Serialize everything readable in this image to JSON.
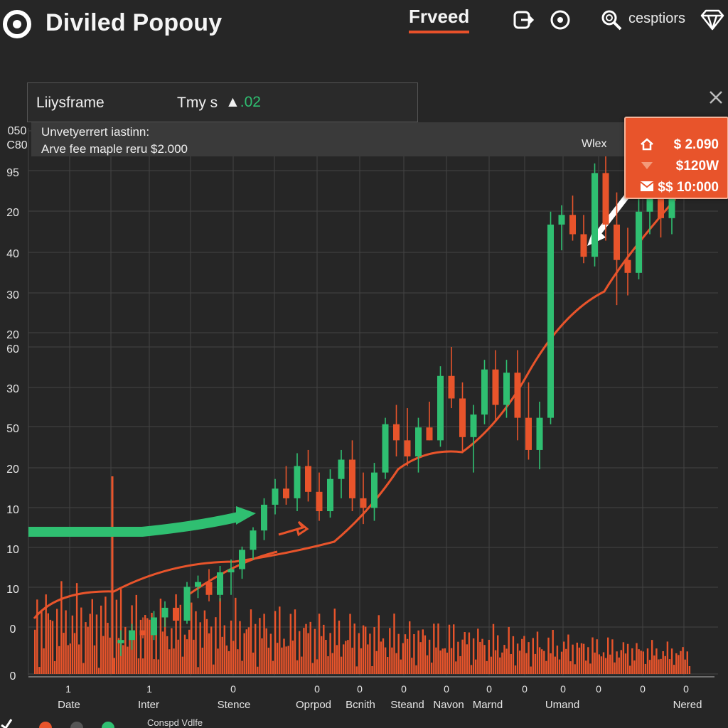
{
  "app": {
    "title": "Diviled Popouy"
  },
  "nav": {
    "active_tab": "Frveed",
    "search_label": "cesptiors"
  },
  "icons": {
    "logo": "logo-ring-icon",
    "export": "export-icon",
    "target": "target-icon",
    "search": "search-icon",
    "diamond": "diamond-icon",
    "close": "close-icon"
  },
  "panel": {
    "title": "Liiysframe",
    "metric_label": "Tmy s",
    "delta_symbol": "▲",
    "delta_value": ".02"
  },
  "info": {
    "line1": "Unvetyerrert iastinn:",
    "line2": "Arve fee maple reru $2.000",
    "right_label": "Wlex"
  },
  "tooltip": {
    "rows": [
      {
        "icon": "home-icon",
        "value": "$ 2.090"
      },
      {
        "icon": "caret-down-icon",
        "value": "$120W"
      },
      {
        "icon": "mail-icon",
        "value": "$$ 10:000"
      }
    ]
  },
  "legend": {
    "label": "Conspd Vdlfe"
  },
  "colors": {
    "background": "#262626",
    "up": "#2fbf71",
    "down": "#e8542b",
    "grid": "#444444",
    "accent": "#e8512a"
  },
  "chart_data": {
    "type": "candlestick",
    "y_tick_labels": [
      "050",
      "C80",
      "95",
      "20",
      "40",
      "30",
      "20",
      "60",
      "30",
      "50",
      "20",
      "10",
      "10",
      "10",
      "0",
      "0"
    ],
    "x_tick_numbers": [
      "1",
      "1",
      "0",
      "0",
      "0",
      "0",
      "0",
      "0",
      "0",
      "0",
      "0",
      "0",
      "0"
    ],
    "x_tick_labels": [
      "Date",
      "Inter",
      "Stence",
      "Oprpod",
      "Bcnith",
      "Steand",
      "Navon",
      "Marnd",
      "Umand",
      "Nered"
    ],
    "ohlc": [
      [
        210,
        218,
        202,
        212,
        10
      ],
      [
        212,
        222,
        206,
        218,
        11
      ],
      [
        218,
        226,
        213,
        215,
        12
      ],
      [
        215,
        230,
        212,
        226,
        14
      ],
      [
        226,
        236,
        220,
        232,
        12
      ],
      [
        232,
        240,
        220,
        224,
        15
      ],
      [
        224,
        248,
        222,
        245,
        16
      ],
      [
        245,
        252,
        238,
        248,
        18
      ],
      [
        248,
        256,
        236,
        240,
        20
      ],
      [
        240,
        258,
        236,
        254,
        18
      ],
      [
        254,
        262,
        240,
        256,
        16
      ],
      [
        256,
        270,
        250,
        268,
        14
      ],
      [
        268,
        282,
        262,
        280,
        16
      ],
      [
        280,
        300,
        274,
        296,
        18
      ],
      [
        296,
        312,
        290,
        306,
        19
      ],
      [
        306,
        320,
        296,
        300,
        22
      ],
      [
        300,
        328,
        292,
        320,
        24
      ],
      [
        320,
        330,
        298,
        304,
        22
      ],
      [
        304,
        316,
        286,
        292,
        20
      ],
      [
        292,
        318,
        288,
        312,
        18
      ],
      [
        312,
        330,
        300,
        324,
        22
      ],
      [
        324,
        336,
        292,
        300,
        24
      ],
      [
        300,
        316,
        284,
        294,
        20
      ],
      [
        294,
        322,
        286,
        316,
        18
      ],
      [
        316,
        350,
        312,
        346,
        24
      ],
      [
        346,
        358,
        326,
        336,
        26
      ],
      [
        336,
        356,
        320,
        326,
        25
      ],
      [
        326,
        350,
        316,
        344,
        22
      ],
      [
        344,
        360,
        336,
        336,
        24
      ],
      [
        336,
        382,
        332,
        376,
        26
      ],
      [
        376,
        394,
        356,
        362,
        28
      ],
      [
        362,
        372,
        328,
        338,
        30
      ],
      [
        338,
        358,
        316,
        352,
        28
      ],
      [
        352,
        386,
        346,
        380,
        24
      ],
      [
        380,
        392,
        348,
        358,
        26
      ],
      [
        358,
        386,
        350,
        378,
        22
      ],
      [
        378,
        392,
        336,
        350,
        20
      ],
      [
        350,
        372,
        324,
        330,
        18
      ],
      [
        330,
        360,
        318,
        350,
        19
      ],
      [
        350,
        478,
        346,
        470,
        20
      ],
      [
        470,
        482,
        454,
        476,
        18
      ],
      [
        476,
        488,
        460,
        464,
        20
      ],
      [
        464,
        476,
        446,
        450,
        21
      ],
      [
        450,
        508,
        444,
        502,
        22
      ],
      [
        502,
        518,
        460,
        470,
        24
      ],
      [
        470,
        490,
        420,
        448,
        22
      ],
      [
        448,
        468,
        426,
        440,
        20
      ],
      [
        440,
        486,
        436,
        478,
        21
      ],
      [
        478,
        498,
        464,
        486,
        20
      ],
      [
        486,
        506,
        462,
        474,
        19
      ],
      [
        474,
        512,
        464,
        506,
        18
      ]
    ]
  }
}
